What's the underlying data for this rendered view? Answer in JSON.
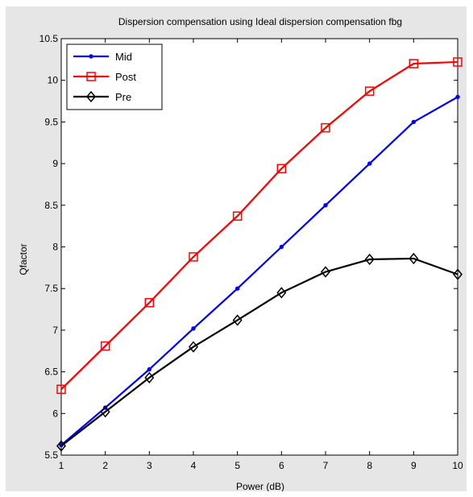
{
  "chart_data": {
    "type": "line",
    "title": "Dispersion compensation using Ideal dispersion compensation fbg",
    "xlabel": "Power (dB)",
    "ylabel": "Qfactor",
    "x": [
      1,
      2,
      3,
      4,
      5,
      6,
      7,
      8,
      9,
      10
    ],
    "xlim": [
      1,
      10
    ],
    "ylim": [
      5.5,
      10.5
    ],
    "xticks": [
      "1",
      "2",
      "3",
      "4",
      "5",
      "6",
      "7",
      "8",
      "9",
      "10"
    ],
    "yticks": [
      "5.5",
      "6",
      "6.5",
      "7",
      "7.5",
      "8",
      "8.5",
      "9",
      "9.5",
      "10",
      "10.5"
    ],
    "grid": false,
    "legend_position": "top-left",
    "series": [
      {
        "name": "Mid",
        "color": "#0000ff",
        "marker": "point",
        "values": [
          5.62,
          6.07,
          6.53,
          7.02,
          7.5,
          8.0,
          8.5,
          9.0,
          9.5,
          9.8
        ]
      },
      {
        "name": "Post",
        "color": "#ff0000",
        "marker": "square",
        "values": [
          6.29,
          6.81,
          7.33,
          7.88,
          8.37,
          8.94,
          9.43,
          9.87,
          10.2,
          10.22
        ]
      },
      {
        "name": "Pre",
        "color": "#000000",
        "marker": "diamond",
        "values": [
          5.61,
          6.02,
          6.43,
          6.8,
          7.12,
          7.45,
          7.7,
          7.85,
          7.86,
          7.67
        ]
      }
    ]
  }
}
